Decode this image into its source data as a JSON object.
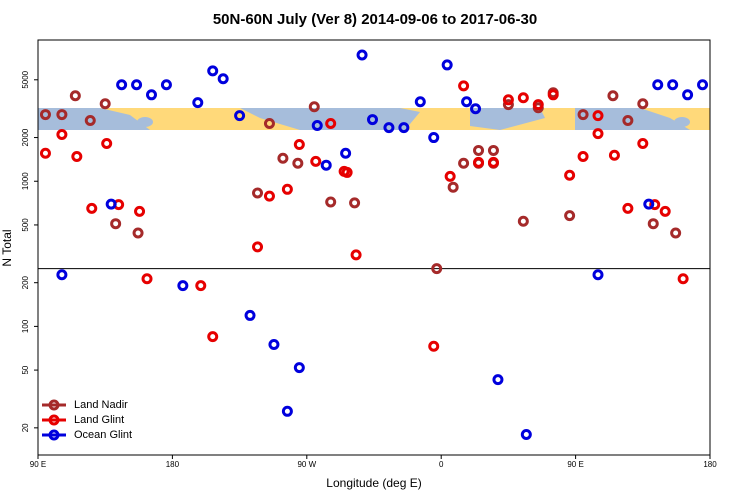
{
  "chart_data": {
    "type": "scatter",
    "title": "50N-60N July (Ver 8)   2014-09-06 to 2017-06-30",
    "x_label": "Longitude (deg E)",
    "y_label": "N Total",
    "xlim": [
      90,
      540
    ],
    "xticks": [
      {
        "value": 90,
        "label": "90 E"
      },
      {
        "value": 180,
        "label": "180"
      },
      {
        "value": 270,
        "label": "90 W"
      },
      {
        "value": 360,
        "label": "0"
      },
      {
        "value": 450,
        "label": "90 E"
      },
      {
        "value": 540,
        "label": "180"
      }
    ],
    "ylim": [
      13,
      9400
    ],
    "log_y": true,
    "yticks": [
      20,
      50,
      100,
      200,
      500,
      1000,
      2000,
      5000
    ],
    "reference_line": 250,
    "legend": "bottom-left",
    "series": [
      {
        "name": "Land Nadir",
        "color": "#a52a2a",
        "x": [
          95,
          106,
          115,
          125,
          135,
          142,
          157,
          237,
          245,
          254,
          264,
          275,
          286,
          302,
          357,
          368,
          375,
          385,
          385,
          395,
          395,
          405,
          415,
          425,
          435,
          446,
          455,
          475,
          485,
          495,
          502,
          517
        ],
        "values": [
          2880,
          2880,
          3880,
          2620,
          3420,
          510,
          440,
          830,
          2500,
          1440,
          1330,
          3260,
          720,
          710,
          250,
          910,
          1330,
          1630,
          1330,
          1630,
          1330,
          3370,
          530,
          3210,
          4070,
          580,
          2880,
          3880,
          2620,
          3420,
          510,
          440
        ]
      },
      {
        "name": "Land Glint",
        "color": "#e60000",
        "x": [
          95,
          106,
          116,
          126,
          136,
          144,
          158,
          163,
          199,
          207,
          237,
          245,
          257,
          265,
          276,
          286,
          295,
          297,
          303,
          355,
          366,
          375,
          385,
          395,
          405,
          415,
          425,
          435,
          446,
          455,
          465,
          465,
          476,
          485,
          495,
          503,
          510,
          522
        ],
        "values": [
          1560,
          2100,
          1480,
          650,
          1820,
          690,
          620,
          213,
          191,
          85,
          353,
          790,
          880,
          1790,
          1370,
          2500,
          1170,
          1150,
          311,
          73,
          1080,
          4540,
          1350,
          1350,
          3640,
          3760,
          3370,
          3940,
          1100,
          1480,
          2830,
          2130,
          1510,
          650,
          1820,
          690,
          620,
          213
        ]
      },
      {
        "name": "Ocean Glint",
        "color": "#0000dd",
        "x": [
          106,
          139,
          146,
          156,
          166,
          176,
          187,
          197,
          207,
          214,
          225,
          232,
          248,
          257,
          265,
          277,
          283,
          296,
          307,
          314,
          325,
          335,
          346,
          355,
          364,
          377,
          383,
          398,
          417,
          465,
          499,
          505,
          515,
          525,
          535
        ],
        "values": [
          227,
          696,
          4620,
          4620,
          3940,
          4620,
          191,
          3480,
          5760,
          5080,
          2830,
          119,
          75,
          26,
          52,
          2420,
          1290,
          1560,
          7410,
          2660,
          2340,
          2340,
          3530,
          2000,
          6330,
          3530,
          3160,
          43,
          18,
          227,
          696,
          4620,
          4620,
          3940,
          4620
        ]
      }
    ]
  }
}
